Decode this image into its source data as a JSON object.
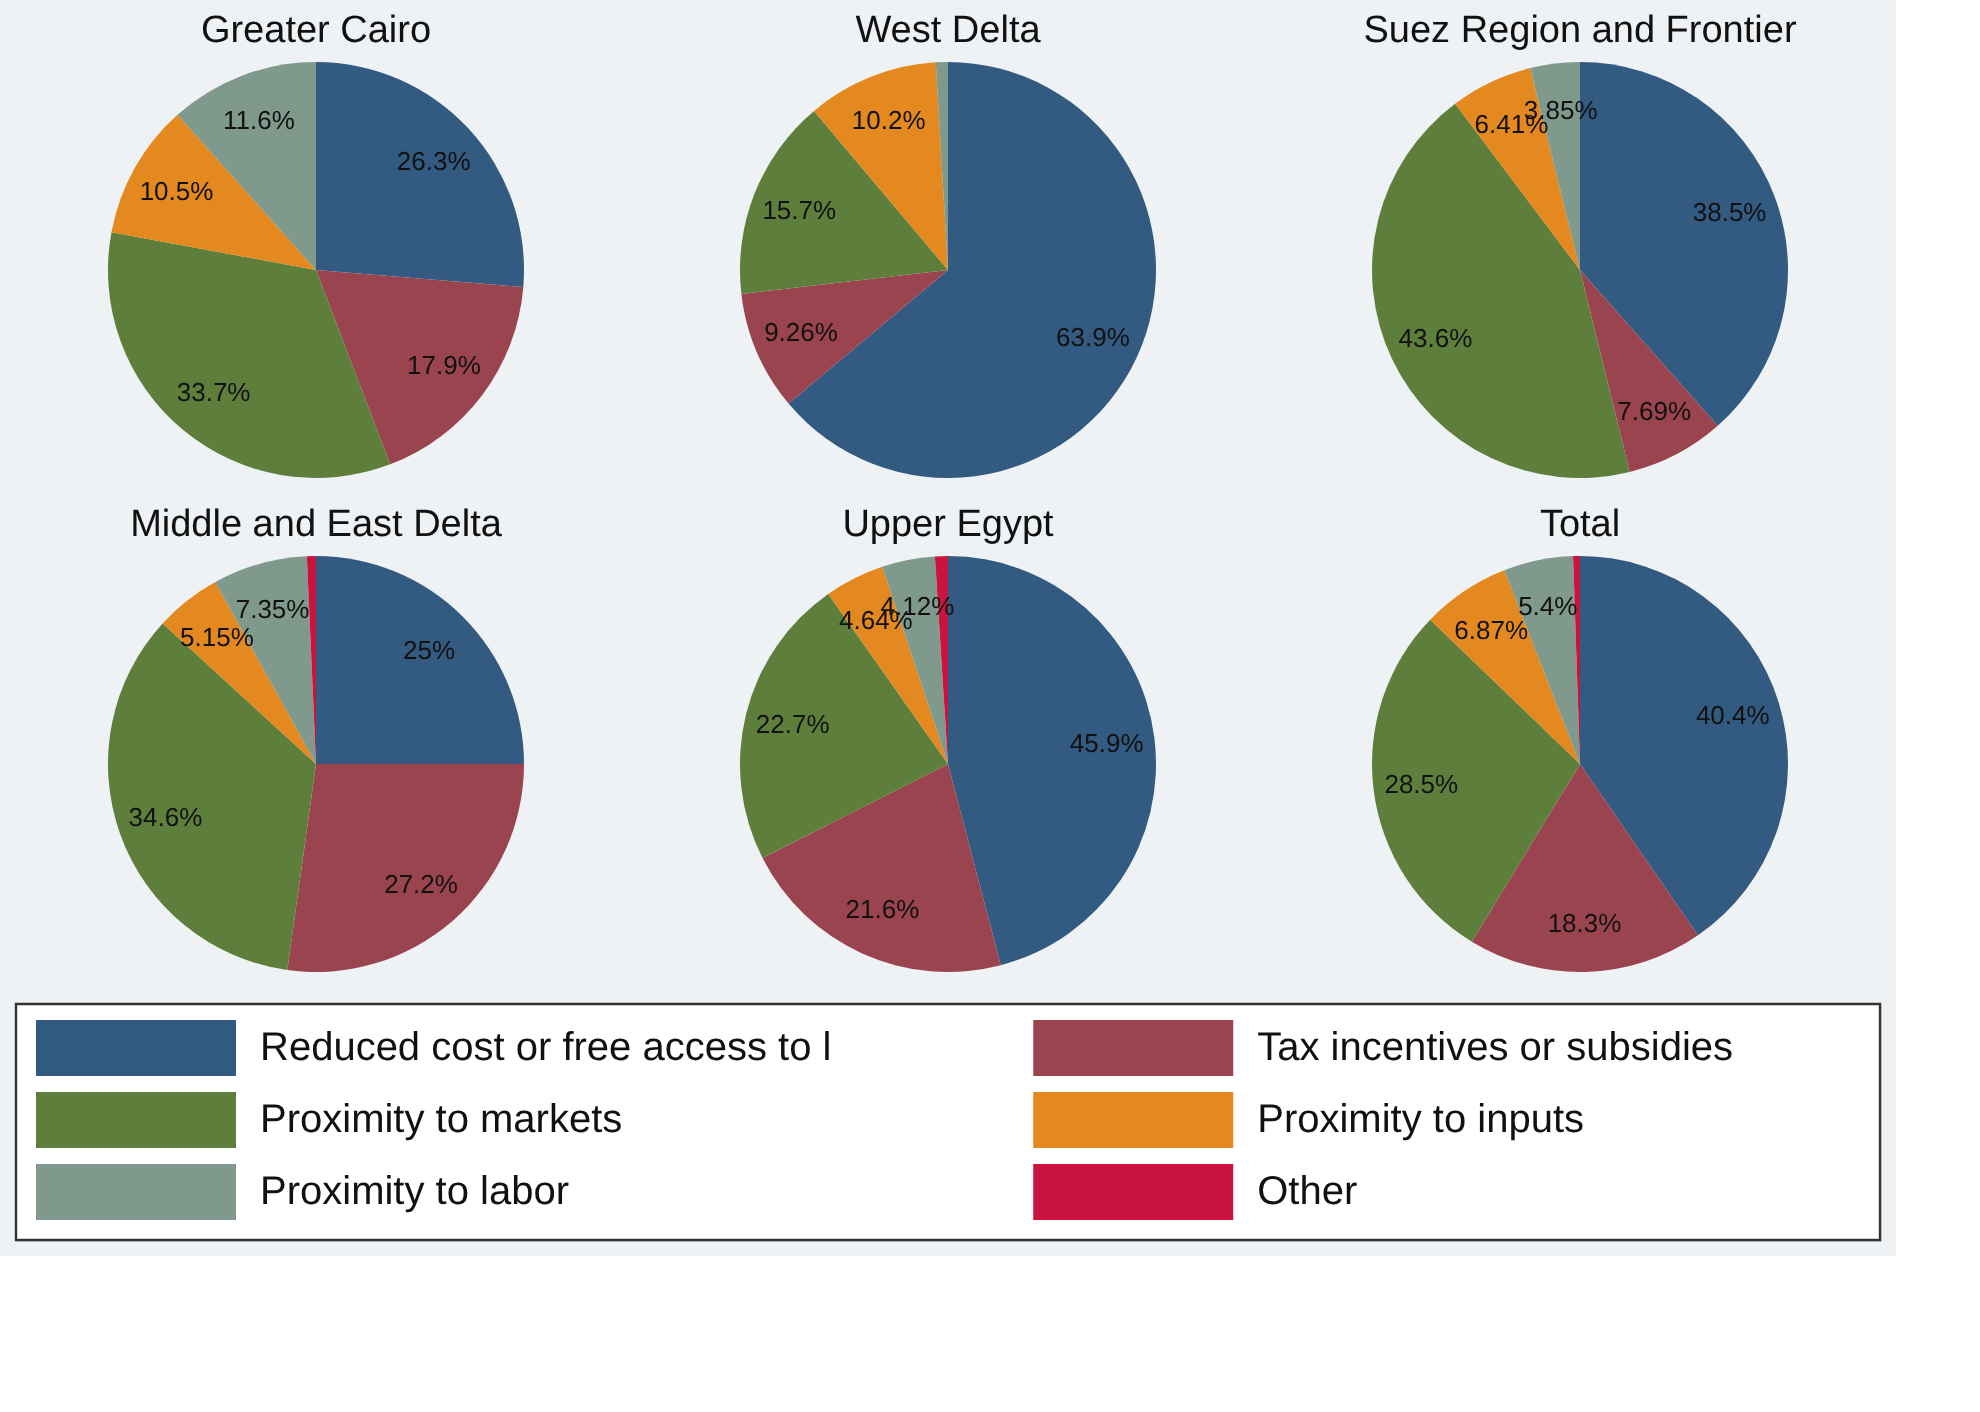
{
  "chart_data": [
    {
      "type": "pie",
      "title": "Greater Cairo",
      "legend": "bottom",
      "categories": [
        "Reduced cost or free access to l",
        "Tax incentives or subsidies",
        "Proximity to markets",
        "Proximity to inputs",
        "Proximity to labor",
        "Other"
      ],
      "values": [
        26.3,
        17.9,
        33.7,
        10.5,
        11.6,
        0
      ],
      "colors": [
        "#335a80",
        "#9a4450",
        "#5e7f3b",
        "#e4891f",
        "#7f998c",
        "#c8143f"
      ],
      "value_labels": [
        "26.3%",
        "17.9%",
        "33.7%",
        "10.5%",
        "11.6%",
        null
      ]
    },
    {
      "type": "pie",
      "title": "West Delta",
      "values": [
        63.9,
        9.26,
        15.7,
        10.2,
        0.94,
        0
      ],
      "colors": [
        "#335a80",
        "#9a4450",
        "#5e7f3b",
        "#e4891f",
        "#7f998c",
        "#c8143f"
      ],
      "value_labels": [
        "63.9%",
        "9.26%",
        "15.7%",
        "10.2%",
        null,
        null
      ]
    },
    {
      "type": "pie",
      "title": "Suez Region and Frontier",
      "values": [
        38.5,
        7.69,
        43.6,
        6.41,
        3.85,
        0
      ],
      "colors": [
        "#335a80",
        "#9a4450",
        "#5e7f3b",
        "#e4891f",
        "#7f998c",
        "#c8143f"
      ],
      "value_labels": [
        "38.5%",
        "7.69%",
        "43.6%",
        "6.41%",
        "3.85%",
        null
      ]
    },
    {
      "type": "pie",
      "title": "Middle and East Delta",
      "values": [
        25,
        27.2,
        34.6,
        5.15,
        7.35,
        0.7
      ],
      "colors": [
        "#335a80",
        "#9a4450",
        "#5e7f3b",
        "#e4891f",
        "#7f998c",
        "#c8143f"
      ],
      "value_labels": [
        "25%",
        "27.2%",
        "34.6%",
        "5.15%",
        "7.35%",
        null
      ]
    },
    {
      "type": "pie",
      "title": "Upper Egypt",
      "values": [
        45.9,
        21.6,
        22.7,
        4.64,
        4.12,
        1.0
      ],
      "colors": [
        "#335a80",
        "#9a4450",
        "#5e7f3b",
        "#e4891f",
        "#7f998c",
        "#c8143f"
      ],
      "value_labels": [
        "45.9%",
        "21.6%",
        "22.7%",
        "4.64%",
        "4.12%",
        null
      ]
    },
    {
      "type": "pie",
      "title": "Total",
      "values": [
        40.4,
        18.3,
        28.5,
        6.87,
        5.4,
        0.53
      ],
      "colors": [
        "#335a80",
        "#9a4450",
        "#5e7f3b",
        "#e4891f",
        "#7f998c",
        "#c8143f"
      ],
      "value_labels": [
        "40.4%",
        "18.3%",
        "28.5%",
        "6.87%",
        "5.4%",
        null
      ]
    }
  ]
}
